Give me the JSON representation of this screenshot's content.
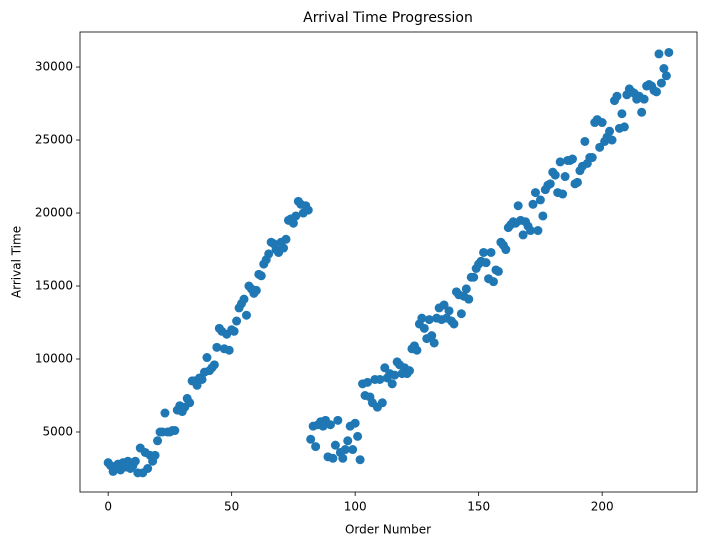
{
  "chart_data": {
    "type": "scatter",
    "title": "Arrival Time Progression",
    "x_label": "Order Number",
    "y_label": "Arrival Time",
    "color": "#1f77b4",
    "x": [
      0,
      1,
      2,
      3,
      4,
      5,
      6,
      7,
      8,
      9,
      10,
      11,
      12,
      13,
      14,
      15,
      16,
      17,
      18,
      19,
      20,
      21,
      22,
      23,
      24,
      25,
      26,
      27,
      28,
      29,
      30,
      31,
      32,
      33,
      34,
      35,
      36,
      37,
      38,
      39,
      40,
      41,
      42,
      43,
      44,
      45,
      46,
      47,
      48,
      49,
      50,
      51,
      52,
      53,
      54,
      55,
      56,
      57,
      58,
      59,
      60,
      61,
      62,
      63,
      64,
      65,
      66,
      67,
      68,
      69,
      70,
      71,
      72,
      73,
      74,
      75,
      76,
      77,
      78,
      79,
      80,
      81,
      82,
      83,
      84,
      85,
      86,
      87,
      88,
      89,
      90,
      91,
      92,
      93,
      94,
      95,
      96,
      97,
      98,
      99,
      100,
      101,
      102,
      103,
      104,
      105,
      106,
      107,
      108,
      109,
      110,
      111,
      112,
      113,
      114,
      115,
      116,
      117,
      118,
      119,
      120,
      121,
      122,
      123,
      124,
      125,
      126,
      127,
      128,
      129,
      130,
      131,
      132,
      133,
      134,
      135,
      136,
      137,
      138,
      139,
      140,
      141,
      142,
      143,
      144,
      145,
      146,
      147,
      148,
      149,
      150,
      151,
      152,
      153,
      154,
      155,
      156,
      157,
      158,
      159,
      160,
      161,
      162,
      163,
      164,
      165,
      166,
      167,
      168,
      169,
      170,
      171,
      172,
      173,
      174,
      175,
      176,
      177,
      178,
      179,
      180,
      181,
      182,
      183,
      184,
      185,
      186,
      187,
      188,
      189,
      190,
      191,
      192,
      193,
      194,
      195,
      196,
      197,
      198,
      199,
      200,
      201,
      202,
      203,
      204,
      205,
      206,
      207,
      208,
      209,
      210,
      211,
      212,
      213,
      214,
      215,
      216,
      217,
      218,
      219,
      220,
      221,
      222,
      223,
      224,
      225,
      226,
      227
    ],
    "values": [
      2900,
      2700,
      2300,
      2600,
      2800,
      2400,
      2900,
      2600,
      3000,
      2500,
      2700,
      3000,
      2200,
      3900,
      2200,
      3600,
      2500,
      3400,
      3000,
      3400,
      4400,
      5000,
      5000,
      6300,
      5000,
      5000,
      5100,
      5100,
      6500,
      6800,
      6400,
      6700,
      7300,
      7000,
      8500,
      8500,
      8200,
      8700,
      8600,
      9100,
      10100,
      9200,
      9400,
      9600,
      10800,
      12100,
      11900,
      10700,
      11700,
      10600,
      12000,
      11900,
      12600,
      13500,
      13800,
      14100,
      13000,
      15000,
      14800,
      14500,
      14700,
      15800,
      15700,
      16500,
      16800,
      17200,
      18000,
      17900,
      17500,
      17300,
      18000,
      17600,
      18200,
      19500,
      19600,
      19300,
      19800,
      20800,
      20600,
      20000,
      20500,
      20200,
      4500,
      5400,
      4000,
      5500,
      5700,
      5400,
      5800,
      3300,
      5500,
      3200,
      4100,
      5800,
      3600,
      3200,
      3800,
      4400,
      5400,
      3800,
      5600,
      4700,
      3100,
      8300,
      7500,
      8400,
      7400,
      7000,
      8600,
      6700,
      8600,
      7000,
      9400,
      8700,
      9000,
      8300,
      8900,
      9800,
      9600,
      9000,
      9400,
      9000,
      9200,
      10700,
      10900,
      10600,
      12400,
      12800,
      12100,
      11400,
      12700,
      11600,
      11100,
      12800,
      13500,
      12700,
      13700,
      12800,
      13300,
      12600,
      12400,
      14600,
      14400,
      13100,
      14300,
      14800,
      14100,
      15600,
      15600,
      16200,
      16500,
      16700,
      17300,
      16600,
      15500,
      17300,
      15300,
      16100,
      16000,
      18000,
      17800,
      17500,
      19000,
      19200,
      19400,
      19300,
      20500,
      19500,
      18500,
      19400,
      19100,
      18800,
      20600,
      21400,
      18800,
      20900,
      19800,
      21600,
      21900,
      22000,
      22800,
      22600,
      21400,
      23500,
      21300,
      22500,
      23600,
      23600,
      23700,
      22000,
      22100,
      22900,
      23200,
      24900,
      23400,
      23800,
      23800,
      26200,
      26400,
      24500,
      26200,
      24900,
      25200,
      25600,
      25000,
      27700,
      28000,
      25800,
      26800,
      25900,
      28100,
      28500,
      28300,
      28200,
      27800,
      28000,
      26900,
      27800,
      28700,
      28800,
      28700,
      28400,
      28300,
      30900,
      28900,
      29900,
      29400,
      31000
    ],
    "xlim": [
      -11.4,
      238.4
    ],
    "xticks": [
      0,
      50,
      100,
      150,
      200
    ],
    "ylim": [
      890,
      32400
    ],
    "yticks": [
      5000,
      10000,
      15000,
      20000,
      25000,
      30000
    ]
  }
}
